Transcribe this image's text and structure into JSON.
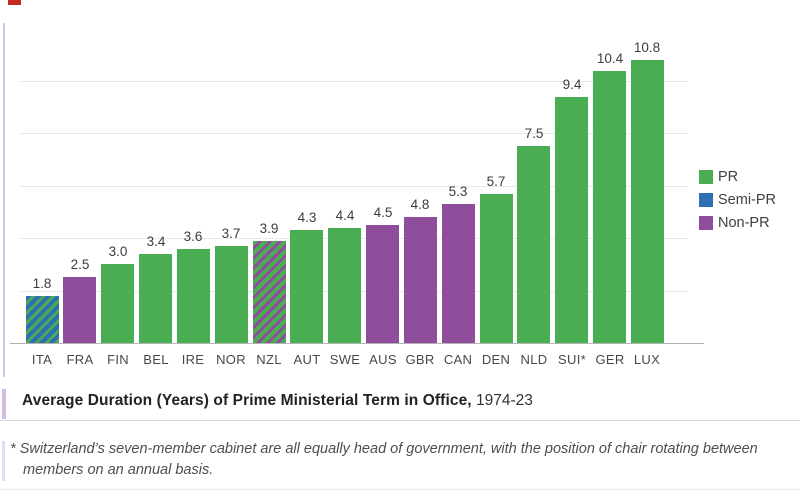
{
  "page": {
    "title_bold": "Average Duration (Years) of Prime Ministerial Term in Office,",
    "title_period": "1974-23",
    "footnote_line1": "* Switzerland’s seven-member cabinet are all equally head of government, with the position of chair rotating between",
    "footnote_line2": "members on an annual basis."
  },
  "legend": {
    "position": "right",
    "items": [
      {
        "label": "PR",
        "color": "#4bad52",
        "style": "pr"
      },
      {
        "label": "Semi-PR",
        "color": "#2f6eb2",
        "style": "semi_pr"
      },
      {
        "label": "Non-PR",
        "color": "#8f4e9b",
        "style": "non_pr"
      }
    ]
  },
  "chart_data": {
    "type": "bar",
    "title": "Average Duration (Years) of Prime Ministerial Term in Office, 1974-23",
    "xlabel": "",
    "ylabel": "",
    "categories": [
      "ITA",
      "FRA",
      "FIN",
      "BEL",
      "IRE",
      "NOR",
      "NZL",
      "AUT",
      "SWE",
      "AUS",
      "GBR",
      "CAN",
      "DEN",
      "NLD",
      "SUI*",
      "GER",
      "LUX"
    ],
    "values": [
      1.8,
      2.5,
      3.0,
      3.4,
      3.6,
      3.7,
      3.9,
      4.3,
      4.4,
      4.5,
      4.8,
      5.3,
      5.7,
      7.5,
      9.4,
      10.4,
      10.8
    ],
    "bar_styles": [
      "semi_pr_hatch_pr",
      "non_pr",
      "pr",
      "pr",
      "pr",
      "pr",
      "pr_hatch_non_pr",
      "pr",
      "pr",
      "non_pr",
      "non_pr",
      "non_pr",
      "pr",
      "pr",
      "pr",
      "pr",
      "pr"
    ],
    "colors": {
      "pr": "#4bad52",
      "semi_pr": "#2f6eb2",
      "non_pr": "#8f4e9b"
    },
    "gridline_values": [
      2,
      4,
      6,
      8,
      10
    ],
    "ylim": [
      0,
      12.2
    ],
    "grid": true,
    "legend_position": "right",
    "value_labels_shown": true
  }
}
